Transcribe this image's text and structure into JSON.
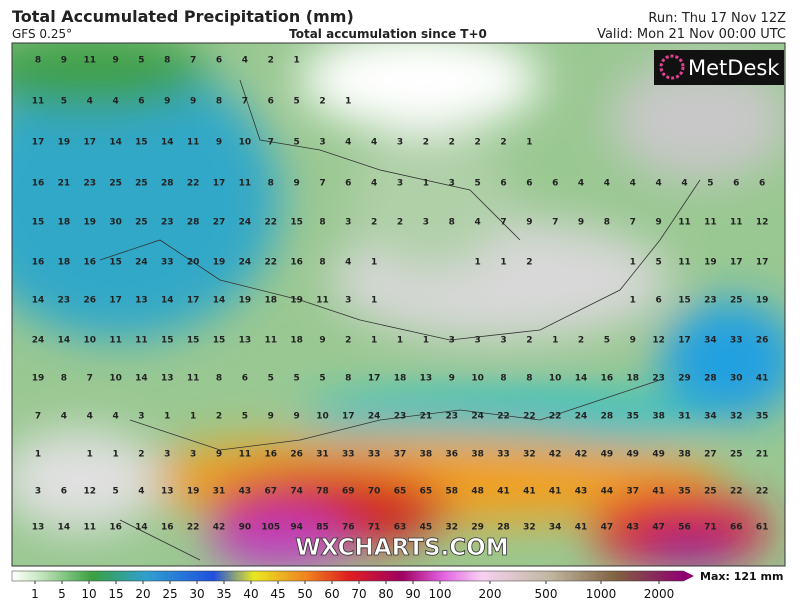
{
  "header": {
    "title": "Total Accumulated Precipitation (mm)",
    "model": "GFS 0.25°",
    "subtitle": "Total accumulation since T+0",
    "run": "Run: Thu 17 Nov 12Z",
    "valid": "Valid: Mon 21 Nov 00:00 UTC"
  },
  "logo": "MetDesk",
  "watermark": "WXCHARTS.COM",
  "grid_values": [
    [
      8,
      9,
      11,
      9,
      5,
      8,
      7,
      6,
      4,
      2,
      1,
      null,
      null,
      null,
      null,
      null,
      null,
      null,
      null,
      null,
      null,
      null,
      null,
      null,
      null,
      null,
      null,
      null,
      null
    ],
    [
      11,
      5,
      4,
      4,
      6,
      9,
      9,
      8,
      7,
      6,
      5,
      2,
      1,
      null,
      null,
      null,
      null,
      null,
      null,
      null,
      null,
      null,
      null,
      null,
      null,
      null,
      null,
      null,
      null
    ],
    [
      17,
      19,
      17,
      14,
      15,
      14,
      11,
      9,
      10,
      7,
      5,
      3,
      4,
      4,
      3,
      2,
      2,
      2,
      2,
      1,
      null,
      null,
      null,
      null,
      null,
      null,
      null,
      null,
      null
    ],
    [
      16,
      21,
      23,
      25,
      25,
      28,
      22,
      17,
      11,
      8,
      9,
      7,
      6,
      4,
      3,
      1,
      3,
      5,
      6,
      6,
      6,
      4,
      4,
      4,
      4,
      4,
      5,
      6,
      6
    ],
    [
      15,
      18,
      19,
      30,
      25,
      23,
      28,
      27,
      24,
      22,
      15,
      8,
      3,
      2,
      2,
      3,
      8,
      4,
      7,
      9,
      7,
      9,
      8,
      7,
      9,
      11,
      11,
      11,
      12
    ],
    [
      16,
      18,
      16,
      15,
      24,
      33,
      20,
      19,
      24,
      22,
      16,
      8,
      4,
      1,
      null,
      null,
      null,
      1,
      1,
      2,
      null,
      null,
      null,
      1,
      5,
      11,
      19,
      17,
      17
    ],
    [
      14,
      23,
      26,
      17,
      13,
      14,
      17,
      14,
      19,
      18,
      19,
      11,
      3,
      1,
      null,
      null,
      null,
      null,
      null,
      null,
      null,
      null,
      null,
      1,
      6,
      15,
      23,
      25,
      19
    ],
    [
      24,
      14,
      10,
      11,
      11,
      15,
      15,
      15,
      13,
      11,
      18,
      9,
      2,
      1,
      1,
      1,
      3,
      3,
      3,
      2,
      1,
      2,
      5,
      9,
      12,
      17,
      34,
      33,
      26
    ],
    [
      19,
      8,
      7,
      10,
      14,
      13,
      11,
      8,
      6,
      5,
      5,
      5,
      8,
      17,
      18,
      13,
      9,
      10,
      8,
      8,
      10,
      14,
      16,
      18,
      23,
      29,
      28,
      30,
      41
    ],
    [
      7,
      4,
      4,
      4,
      3,
      1,
      1,
      2,
      5,
      9,
      9,
      10,
      17,
      24,
      23,
      21,
      23,
      24,
      22,
      22,
      22,
      24,
      28,
      35,
      38,
      31,
      34,
      32,
      35
    ],
    [
      1,
      null,
      1,
      1,
      2,
      3,
      3,
      9,
      11,
      16,
      26,
      31,
      33,
      33,
      37,
      38,
      36,
      38,
      33,
      32,
      42,
      42,
      49,
      49,
      49,
      38,
      27,
      25,
      21
    ],
    [
      3,
      6,
      12,
      5,
      4,
      13,
      19,
      31,
      43,
      67,
      74,
      78,
      69,
      70,
      65,
      65,
      58,
      48,
      41,
      41,
      41,
      43,
      44,
      37,
      41,
      35,
      25,
      22,
      22
    ],
    [
      13,
      14,
      11,
      16,
      14,
      16,
      22,
      42,
      90,
      105,
      94,
      85,
      76,
      71,
      63,
      45,
      32,
      29,
      28,
      32,
      34,
      41,
      47,
      43,
      47,
      56,
      71,
      66,
      61
    ]
  ],
  "colorbar": {
    "ticks": [
      1,
      5,
      10,
      15,
      20,
      25,
      30,
      35,
      40,
      45,
      50,
      60,
      70,
      80,
      90,
      100,
      200,
      500,
      1000,
      2000
    ],
    "max_label": "Max: 121 mm"
  }
}
